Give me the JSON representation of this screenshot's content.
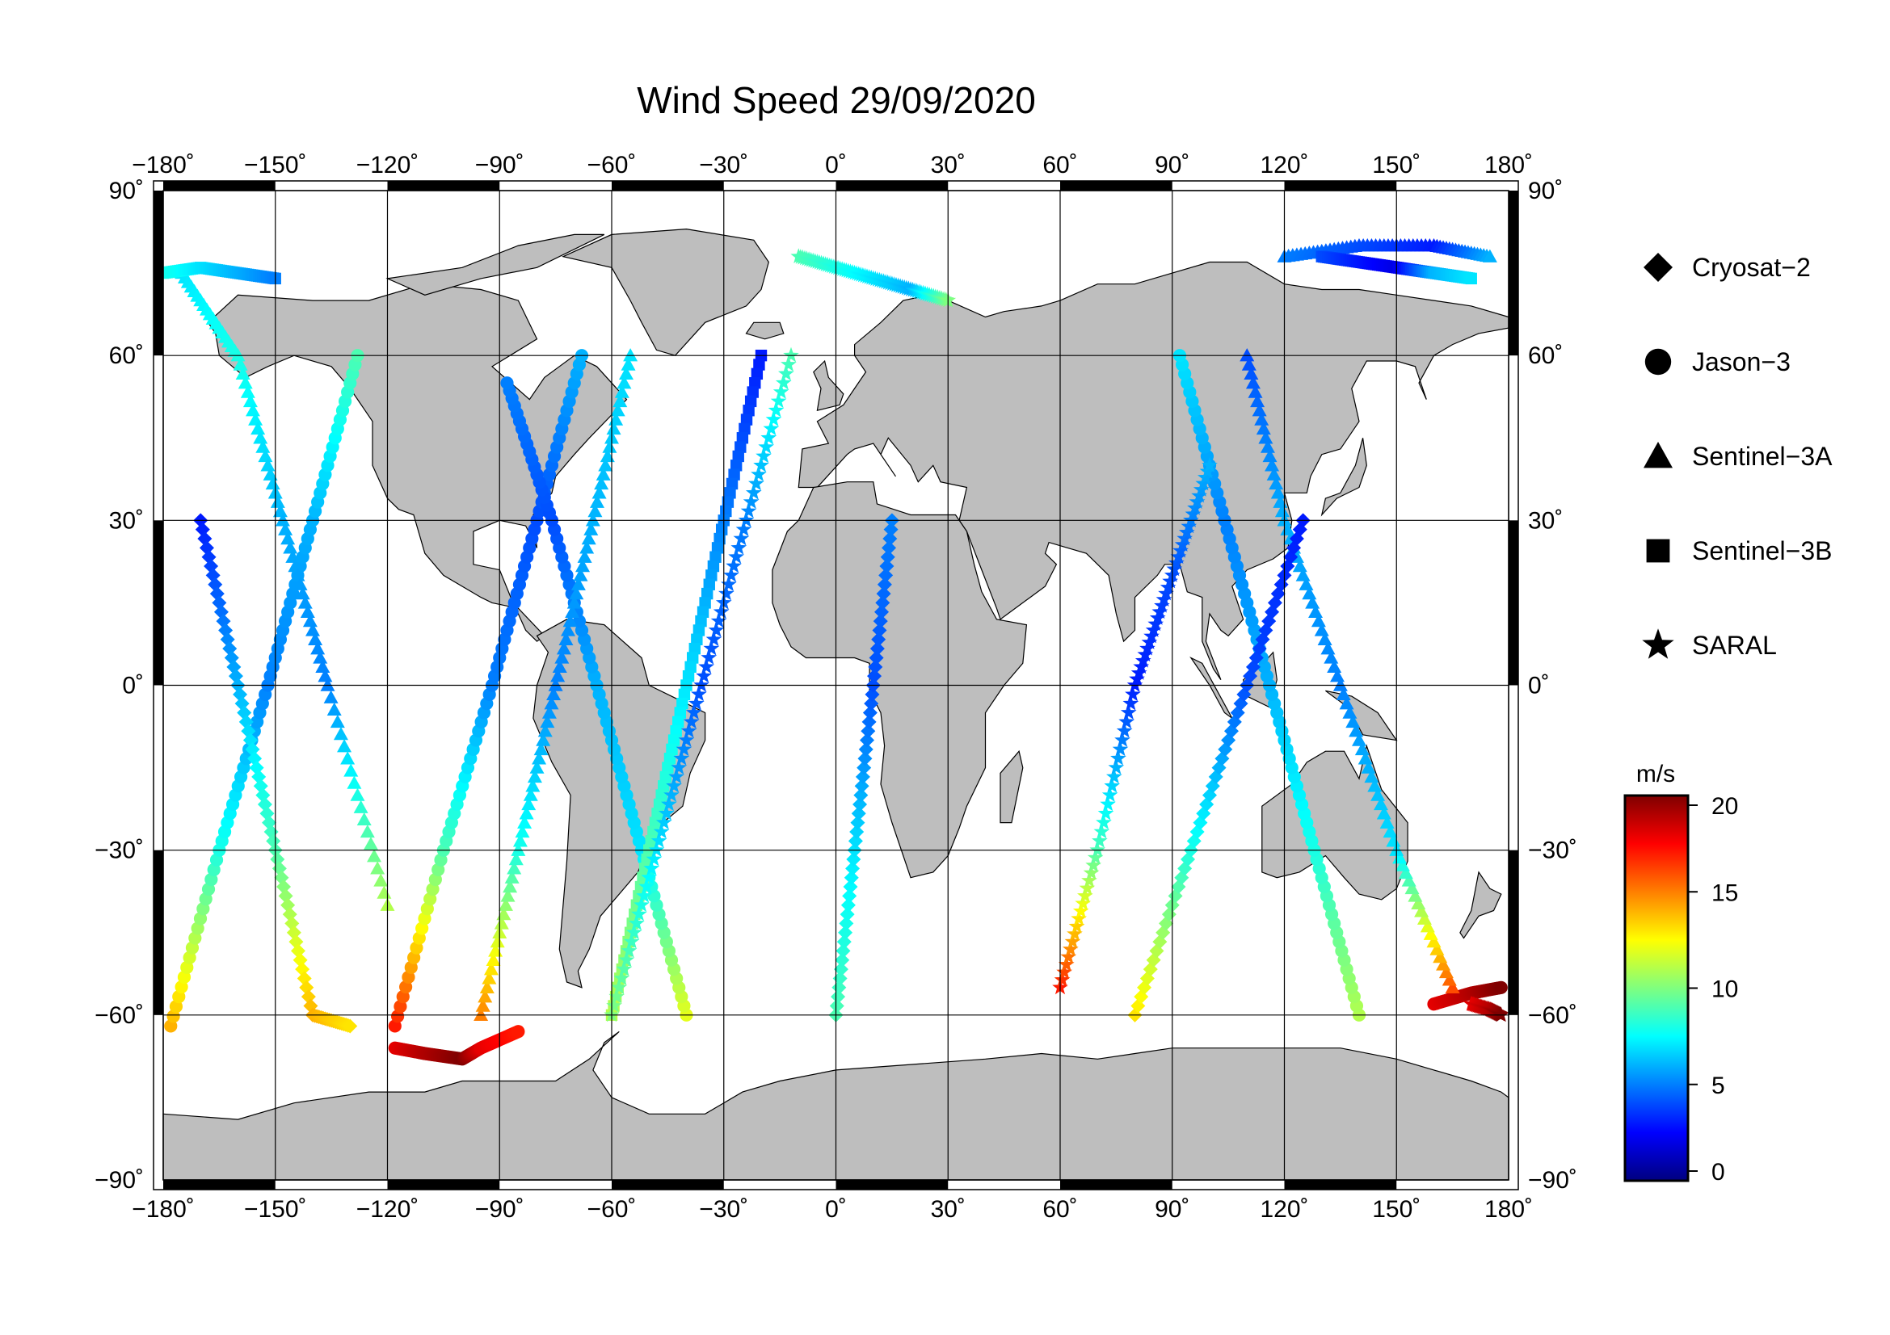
{
  "title": "Wind Speed 29/09/2020",
  "map": {
    "projection": "equirectangular",
    "lon_range": [
      -180,
      180
    ],
    "lat_range": [
      -90,
      90
    ],
    "lon_ticks": [
      -180,
      -150,
      -120,
      -90,
      -60,
      -30,
      0,
      30,
      60,
      90,
      120,
      150,
      180
    ],
    "lat_ticks": [
      -90,
      -60,
      -30,
      0,
      30,
      60,
      90
    ],
    "degree_symbol": "˚",
    "land_color": "#bebebe",
    "ocean_color": "#ffffff"
  },
  "legend": {
    "items": [
      {
        "label": "Cryosat−2",
        "marker": "diamond"
      },
      {
        "label": "Jason−3",
        "marker": "circle"
      },
      {
        "label": "Sentinel−3A",
        "marker": "triangle"
      },
      {
        "label": "Sentinel−3B",
        "marker": "square"
      },
      {
        "label": "SARAL",
        "marker": "star"
      }
    ]
  },
  "colorbar": {
    "unit": "m/s",
    "min": 0,
    "max": 20,
    "ticks": [
      0,
      5,
      10,
      15,
      20
    ],
    "colormap": "jet",
    "colors": [
      "#00007f",
      "#0000ff",
      "#007fff",
      "#00ffff",
      "#7fff7f",
      "#ffff00",
      "#ff7f00",
      "#ff0000",
      "#7f0000"
    ]
  },
  "chart_data": {
    "type": "scatter",
    "title": "Wind Speed 29/09/2020",
    "xlabel": "",
    "ylabel": "",
    "x_meaning": "longitude (degrees)",
    "y_meaning": "latitude (degrees)",
    "value_meaning": "wind speed (m/s)",
    "xlim": [
      -180,
      180
    ],
    "ylim": [
      -90,
      90
    ],
    "series": [
      {
        "name": "Jason−3",
        "marker": "circle",
        "tracks": [
          {
            "lon": [
              -178,
              -165,
              -152,
              -140,
              -128
            ],
            "lat": [
              -62,
              -30,
              0,
              30,
              60
            ],
            "ws": [
              14,
              8,
              5,
              6,
              9
            ]
          },
          {
            "lon": [
              -118,
              -105,
              -92,
              -80,
              -68
            ],
            "lat": [
              -62,
              -30,
              0,
              30,
              60
            ],
            "ws": [
              17,
              9,
              5,
              4,
              6
            ]
          },
          {
            "lon": [
              -40,
              -52,
              -64,
              -76,
              -88
            ],
            "lat": [
              -60,
              -30,
              0,
              30,
              55
            ],
            "ws": [
              12,
              7,
              6,
              4,
              5
            ]
          },
          {
            "lon": [
              140,
              128,
              116,
              104,
              92
            ],
            "lat": [
              -60,
              -30,
              0,
              30,
              60
            ],
            "ws": [
              11,
              8,
              6,
              5,
              7
            ]
          },
          {
            "lon": [
              -118,
              -110,
              -100,
              -95,
              -85
            ],
            "lat": [
              -66,
              -67,
              -68,
              -66,
              -63
            ],
            "ws": [
              18,
              19,
              20,
              18,
              17
            ]
          },
          {
            "lon": [
              160,
              170,
              178
            ],
            "lat": [
              -58,
              -56,
              -55
            ],
            "ws": [
              18,
              19,
              20
            ]
          }
        ]
      },
      {
        "name": "Sentinel−3A",
        "marker": "triangle",
        "tracks": [
          {
            "lon": [
              -175,
              -160,
              -148,
              -136,
              -120
            ],
            "lat": [
              75,
              60,
              30,
              0,
              -40
            ],
            "ws": [
              7,
              8,
              6,
              5,
              11
            ]
          },
          {
            "lon": [
              -95,
              -85,
              -75,
              -65,
              -55
            ],
            "lat": [
              -60,
              -30,
              0,
              30,
              60
            ],
            "ws": [
              15,
              8,
              5,
              6,
              7
            ]
          },
          {
            "lon": [
              165,
              150,
              135,
              120,
              110
            ],
            "lat": [
              -55,
              -30,
              0,
              30,
              60
            ],
            "ws": [
              16,
              7,
              5,
              6,
              4
            ]
          },
          {
            "lon": [
              120,
              140,
              160,
              175
            ],
            "lat": [
              78,
              80,
              80,
              78
            ],
            "ws": [
              5,
              4,
              3,
              6
            ]
          }
        ]
      },
      {
        "name": "Sentinel−3B",
        "marker": "square",
        "tracks": [
          {
            "lon": [
              -180,
              -170,
              -160,
              -150
            ],
            "lat": [
              75,
              76,
              75,
              74
            ],
            "ws": [
              8,
              7,
              6,
              5
            ]
          },
          {
            "lon": [
              -20,
              -30,
              -40,
              -50,
              -60
            ],
            "lat": [
              60,
              30,
              0,
              -30,
              -60
            ],
            "ws": [
              3,
              5,
              7,
              9,
              11
            ]
          },
          {
            "lon": [
              130,
              140,
              150,
              160,
              170
            ],
            "lat": [
              78,
              77,
              76,
              75,
              74
            ],
            "ws": [
              4,
              3,
              2,
              6,
              7
            ]
          }
        ]
      },
      {
        "name": "Cryosat−2",
        "marker": "diamond",
        "tracks": [
          {
            "lon": [
              -170,
              -160,
              -150,
              -140,
              -130
            ],
            "lat": [
              30,
              0,
              -30,
              -60,
              -62
            ],
            "ws": [
              3,
              6,
              9,
              14,
              13
            ]
          },
          {
            "lon": [
              0,
              5,
              10,
              15
            ],
            "lat": [
              -60,
              -30,
              0,
              30
            ],
            "ws": [
              9,
              7,
              4,
              5
            ]
          },
          {
            "lon": [
              80,
              95,
              110,
              125
            ],
            "lat": [
              -60,
              -30,
              0,
              30
            ],
            "ws": [
              13,
              8,
              4,
              3
            ]
          }
        ]
      },
      {
        "name": "SARAL",
        "marker": "star",
        "tracks": [
          {
            "lon": [
              -60,
              -48,
              -36,
              -24,
              -12
            ],
            "lat": [
              -60,
              -30,
              0,
              30,
              60
            ],
            "ws": [
              10,
              7,
              4,
              5,
              9
            ]
          },
          {
            "lon": [
              -10,
              0,
              10,
              20,
              30
            ],
            "lat": [
              78,
              76,
              74,
              72,
              70
            ],
            "ws": [
              9,
              8,
              7,
              6,
              10
            ]
          },
          {
            "lon": [
              60,
              70,
              80,
              90,
              100
            ],
            "lat": [
              -55,
              -30,
              0,
              20,
              40
            ],
            "ws": [
              17,
              9,
              3,
              4,
              6
            ]
          },
          {
            "lon": [
              170,
              175,
              178
            ],
            "lat": [
              -58,
              -59,
              -60
            ],
            "ws": [
              18,
              19,
              20
            ]
          }
        ]
      }
    ]
  }
}
